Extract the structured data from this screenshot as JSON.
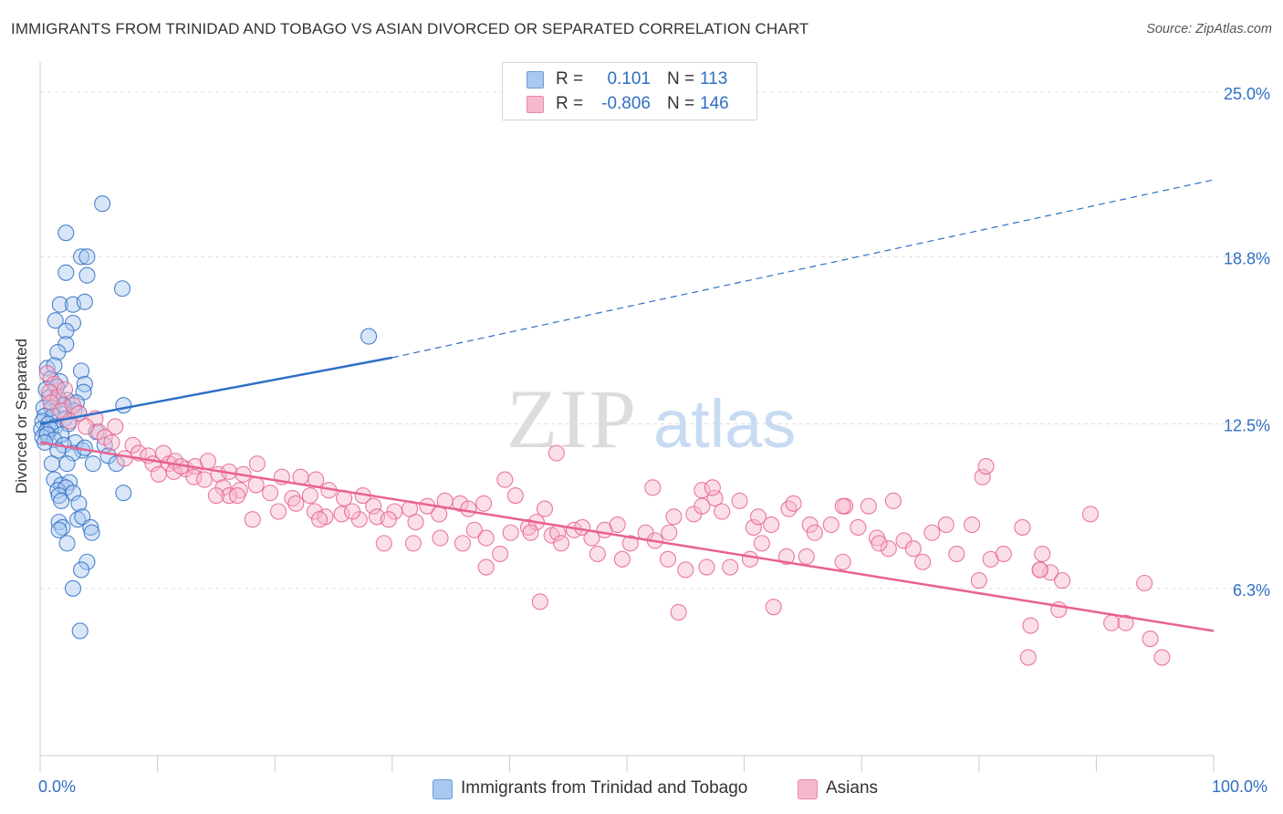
{
  "title": "IMMIGRANTS FROM TRINIDAD AND TOBAGO VS ASIAN DIVORCED OR SEPARATED CORRELATION CHART",
  "source": "Source: ZipAtlas.com",
  "watermark": {
    "zip": "ZIP",
    "atlas": "atlas"
  },
  "legend": {
    "rows": [
      {
        "r_label": "R =",
        "r_value": "0.101",
        "n_label": "N =",
        "n_value": "113",
        "color": "#a8c8f0"
      },
      {
        "r_label": "R =",
        "r_value": "-0.806",
        "n_label": "N =",
        "n_value": "146",
        "color": "#f6b8cc"
      }
    ]
  },
  "chart_data": {
    "type": "scatter",
    "title": "IMMIGRANTS FROM TRINIDAD AND TOBAGO VS ASIAN DIVORCED OR SEPARATED CORRELATION CHART",
    "ylabel": "Divorced or Separated",
    "xlabel": "",
    "xlim": [
      0,
      100
    ],
    "ylim": [
      0,
      26
    ],
    "x_tick_labels": [
      "0.0%",
      "100.0%"
    ],
    "y_ticks": [
      6.3,
      12.5,
      18.8,
      25.0
    ],
    "y_tick_labels": [
      "6.3%",
      "12.5%",
      "18.8%",
      "25.0%"
    ],
    "grid": true,
    "legend_position": "top-center",
    "series": [
      {
        "name": "Immigrants from Trinidad and Tobago",
        "color": "#2f6fc4",
        "fill": "#a8c8f0",
        "trend": {
          "x0": 0,
          "y0": 12.5,
          "x1": 30,
          "y1": 15.0,
          "dash_x1": 100,
          "dash_y1": 21.7
        },
        "points": [
          [
            5.3,
            20.8
          ],
          [
            2.2,
            19.7
          ],
          [
            3.5,
            18.8
          ],
          [
            4.0,
            18.8
          ],
          [
            2.2,
            18.2
          ],
          [
            4.0,
            18.1
          ],
          [
            7.0,
            17.6
          ],
          [
            1.7,
            17.0
          ],
          [
            2.8,
            17.0
          ],
          [
            3.8,
            17.1
          ],
          [
            1.3,
            16.4
          ],
          [
            2.8,
            16.3
          ],
          [
            2.2,
            16.0
          ],
          [
            2.2,
            15.5
          ],
          [
            1.5,
            15.2
          ],
          [
            28.0,
            15.8
          ],
          [
            0.6,
            14.6
          ],
          [
            1.2,
            14.7
          ],
          [
            3.5,
            14.5
          ],
          [
            0.9,
            14.2
          ],
          [
            1.7,
            14.1
          ],
          [
            3.8,
            14.0
          ],
          [
            0.5,
            13.8
          ],
          [
            1.4,
            13.9
          ],
          [
            3.7,
            13.7
          ],
          [
            0.8,
            13.5
          ],
          [
            1.6,
            13.4
          ],
          [
            2.3,
            13.4
          ],
          [
            3.1,
            13.3
          ],
          [
            7.1,
            13.2
          ],
          [
            0.3,
            13.1
          ],
          [
            1.0,
            13.1
          ],
          [
            2.0,
            13.2
          ],
          [
            2.9,
            13.0
          ],
          [
            0.4,
            12.8
          ],
          [
            1.1,
            12.8
          ],
          [
            2.1,
            12.7
          ],
          [
            3.3,
            12.9
          ],
          [
            0.2,
            12.6
          ],
          [
            0.7,
            12.5
          ],
          [
            1.3,
            12.4
          ],
          [
            2.4,
            12.5
          ],
          [
            0.1,
            12.3
          ],
          [
            0.5,
            12.2
          ],
          [
            0.9,
            12.3
          ],
          [
            1.8,
            12.1
          ],
          [
            0.2,
            12.0
          ],
          [
            0.6,
            12.1
          ],
          [
            1.2,
            11.9
          ],
          [
            3.0,
            11.8
          ],
          [
            4.8,
            12.2
          ],
          [
            0.4,
            11.8
          ],
          [
            2.0,
            11.7
          ],
          [
            3.6,
            11.5
          ],
          [
            5.5,
            11.7
          ],
          [
            1.5,
            11.5
          ],
          [
            2.8,
            11.4
          ],
          [
            3.8,
            11.6
          ],
          [
            5.8,
            11.3
          ],
          [
            1.0,
            11.0
          ],
          [
            2.3,
            11.0
          ],
          [
            4.5,
            11.0
          ],
          [
            6.5,
            11.0
          ],
          [
            1.2,
            10.4
          ],
          [
            1.8,
            10.2
          ],
          [
            2.5,
            10.3
          ],
          [
            1.5,
            10.0
          ],
          [
            2.2,
            10.1
          ],
          [
            1.6,
            9.8
          ],
          [
            2.8,
            9.9
          ],
          [
            7.1,
            9.9
          ],
          [
            1.8,
            9.6
          ],
          [
            3.3,
            9.5
          ],
          [
            1.6,
            8.8
          ],
          [
            3.2,
            8.9
          ],
          [
            3.6,
            9.0
          ],
          [
            1.9,
            8.6
          ],
          [
            4.3,
            8.6
          ],
          [
            1.6,
            8.5
          ],
          [
            4.4,
            8.4
          ],
          [
            2.3,
            8.0
          ],
          [
            4.0,
            7.3
          ],
          [
            3.5,
            7.0
          ],
          [
            2.8,
            6.3
          ],
          [
            3.4,
            4.7
          ]
        ]
      },
      {
        "name": "Asians",
        "color": "#e8628f",
        "fill": "#f6b8cc",
        "trend": {
          "x0": 0,
          "y0": 11.8,
          "x1": 100,
          "y1": 4.7
        },
        "points": [
          [
            0.6,
            14.4
          ],
          [
            1.2,
            14.0
          ],
          [
            0.8,
            13.7
          ],
          [
            1.5,
            13.5
          ],
          [
            2.1,
            13.8
          ],
          [
            0.9,
            13.3
          ],
          [
            1.8,
            13.0
          ],
          [
            2.8,
            13.2
          ],
          [
            3.3,
            12.9
          ],
          [
            2.5,
            12.6
          ],
          [
            4.7,
            12.7
          ],
          [
            5.0,
            12.2
          ],
          [
            3.9,
            12.4
          ],
          [
            6.4,
            12.4
          ],
          [
            5.5,
            12.0
          ],
          [
            6.1,
            11.8
          ],
          [
            7.9,
            11.7
          ],
          [
            8.4,
            11.4
          ],
          [
            9.2,
            11.3
          ],
          [
            9.6,
            11.0
          ],
          [
            7.2,
            11.2
          ],
          [
            10.5,
            11.4
          ],
          [
            11.0,
            11.0
          ],
          [
            11.5,
            11.1
          ],
          [
            12.4,
            10.8
          ],
          [
            13.2,
            10.9
          ],
          [
            10.1,
            10.6
          ],
          [
            11.4,
            10.7
          ],
          [
            12.0,
            10.9
          ],
          [
            14.3,
            11.1
          ],
          [
            13.1,
            10.5
          ],
          [
            14.0,
            10.4
          ],
          [
            15.2,
            10.6
          ],
          [
            16.1,
            10.7
          ],
          [
            17.3,
            10.6
          ],
          [
            18.5,
            11.0
          ],
          [
            15.6,
            10.1
          ],
          [
            17.0,
            10.0
          ],
          [
            18.4,
            10.2
          ],
          [
            19.6,
            9.9
          ],
          [
            16.1,
            9.8
          ],
          [
            20.6,
            10.5
          ],
          [
            22.2,
            10.5
          ],
          [
            23.5,
            10.4
          ],
          [
            21.5,
            9.7
          ],
          [
            23.0,
            9.8
          ],
          [
            24.6,
            10.0
          ],
          [
            25.9,
            9.7
          ],
          [
            27.5,
            9.8
          ],
          [
            28.4,
            9.4
          ],
          [
            20.3,
            9.2
          ],
          [
            21.8,
            9.5
          ],
          [
            23.4,
            9.2
          ],
          [
            24.3,
            9.0
          ],
          [
            25.7,
            9.1
          ],
          [
            27.2,
            8.9
          ],
          [
            28.7,
            9.0
          ],
          [
            30.2,
            9.2
          ],
          [
            31.5,
            9.3
          ],
          [
            33.0,
            9.4
          ],
          [
            34.5,
            9.6
          ],
          [
            35.8,
            9.5
          ],
          [
            18.1,
            8.9
          ],
          [
            23.8,
            8.9
          ],
          [
            26.6,
            9.2
          ],
          [
            29.7,
            8.9
          ],
          [
            32.0,
            8.8
          ],
          [
            34.0,
            9.1
          ],
          [
            36.5,
            9.3
          ],
          [
            37.8,
            9.5
          ],
          [
            29.3,
            8.0
          ],
          [
            31.8,
            8.0
          ],
          [
            34.1,
            8.2
          ],
          [
            36.0,
            8.0
          ],
          [
            37.0,
            8.5
          ],
          [
            38.0,
            8.2
          ],
          [
            40.1,
            8.4
          ],
          [
            41.6,
            8.6
          ],
          [
            42.3,
            8.8
          ],
          [
            43.6,
            8.3
          ],
          [
            44.1,
            8.4
          ],
          [
            45.5,
            8.5
          ],
          [
            46.2,
            8.6
          ],
          [
            47.0,
            8.2
          ],
          [
            48.1,
            8.5
          ],
          [
            49.2,
            8.7
          ],
          [
            50.3,
            8.0
          ],
          [
            51.6,
            8.4
          ],
          [
            52.4,
            8.1
          ],
          [
            53.6,
            8.4
          ],
          [
            54.0,
            9.0
          ],
          [
            55.7,
            9.1
          ],
          [
            56.4,
            9.4
          ],
          [
            57.5,
            9.7
          ],
          [
            58.1,
            9.2
          ],
          [
            59.6,
            9.6
          ],
          [
            60.8,
            8.6
          ],
          [
            61.2,
            9.0
          ],
          [
            62.3,
            8.7
          ],
          [
            63.8,
            9.3
          ],
          [
            64.2,
            9.5
          ],
          [
            65.6,
            8.7
          ],
          [
            66.0,
            8.4
          ],
          [
            67.4,
            8.7
          ],
          [
            68.6,
            9.4
          ],
          [
            69.7,
            8.6
          ],
          [
            70.6,
            9.4
          ],
          [
            71.3,
            8.2
          ],
          [
            72.3,
            7.8
          ],
          [
            73.6,
            8.1
          ],
          [
            74.4,
            7.8
          ],
          [
            75.2,
            7.3
          ],
          [
            76.0,
            8.4
          ],
          [
            77.2,
            8.7
          ],
          [
            78.1,
            7.6
          ],
          [
            79.4,
            8.7
          ],
          [
            80.3,
            10.5
          ],
          [
            80.6,
            10.9
          ],
          [
            81.0,
            7.4
          ],
          [
            82.1,
            7.6
          ],
          [
            83.7,
            8.6
          ],
          [
            85.4,
            7.6
          ],
          [
            86.1,
            6.9
          ],
          [
            87.1,
            6.6
          ],
          [
            89.5,
            9.1
          ],
          [
            84.4,
            4.9
          ],
          [
            84.2,
            3.7
          ],
          [
            86.8,
            5.5
          ],
          [
            91.3,
            5.0
          ],
          [
            92.5,
            5.0
          ],
          [
            94.6,
            4.4
          ],
          [
            95.6,
            3.7
          ],
          [
            42.6,
            5.8
          ],
          [
            54.4,
            5.4
          ],
          [
            62.5,
            5.6
          ],
          [
            44.4,
            8.0
          ],
          [
            47.5,
            7.6
          ],
          [
            49.6,
            7.4
          ],
          [
            53.5,
            7.4
          ],
          [
            60.5,
            7.4
          ],
          [
            55.0,
            7.0
          ],
          [
            58.8,
            7.1
          ],
          [
            61.5,
            8.0
          ],
          [
            65.3,
            7.5
          ],
          [
            68.4,
            7.3
          ],
          [
            71.5,
            8.0
          ],
          [
            85.2,
            7.0
          ],
          [
            39.6,
            10.4
          ],
          [
            44.0,
            11.4
          ],
          [
            52.2,
            10.1
          ],
          [
            56.4,
            10.0
          ],
          [
            57.3,
            10.1
          ],
          [
            68.4,
            9.4
          ],
          [
            72.7,
            9.6
          ],
          [
            80.0,
            6.6
          ],
          [
            85.2,
            7.0
          ],
          [
            94.1,
            6.5
          ],
          [
            15.0,
            9.8
          ],
          [
            16.8,
            9.8
          ],
          [
            38.0,
            7.1
          ],
          [
            39.2,
            7.6
          ],
          [
            40.5,
            9.8
          ],
          [
            41.8,
            8.4
          ],
          [
            43.0,
            9.3
          ],
          [
            56.8,
            7.1
          ],
          [
            63.6,
            7.5
          ]
        ]
      }
    ]
  },
  "axis": {
    "x_left_label": "0.0%",
    "x_right_label": "100.0%",
    "y_axis_title": "Divorced or Separated"
  },
  "bottom_legend": [
    {
      "label": "Immigrants from Trinidad and Tobago",
      "color": "#a8c8f0"
    },
    {
      "label": "Asians",
      "color": "#f6b8cc"
    }
  ]
}
